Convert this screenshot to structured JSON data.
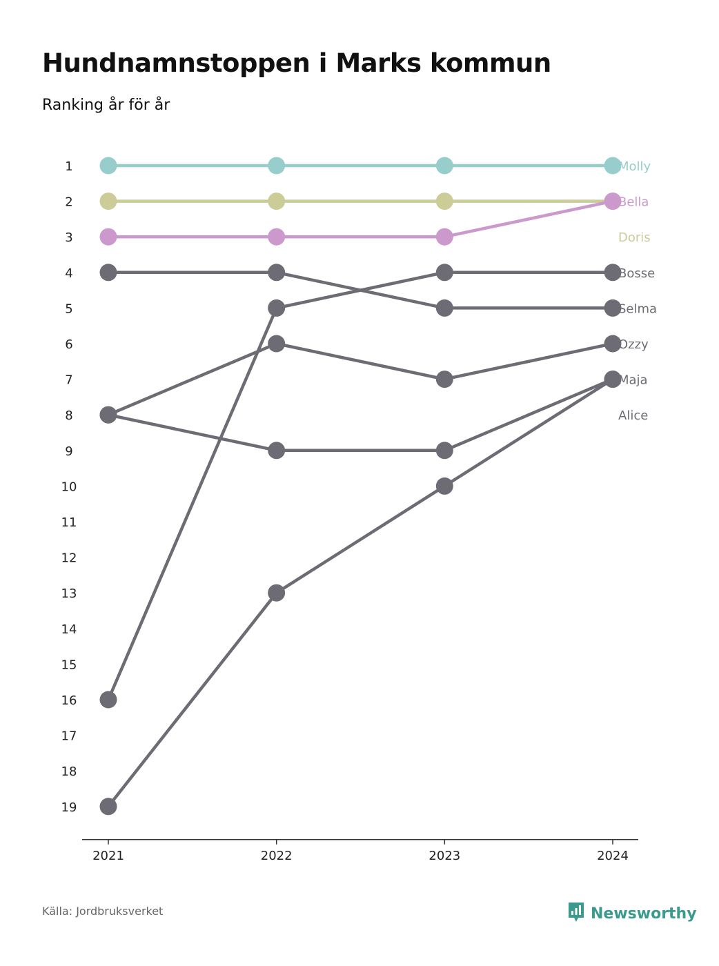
{
  "title": "Hundnamnstoppen i Marks kommun",
  "subtitle": "Ranking år för år",
  "source": "Källa: Jordbruksverket",
  "brand": {
    "name": "Newsworthy",
    "color": "#3a9a8e",
    "icon": "bar-chart-logo-icon"
  },
  "colors": {
    "molly": "#97cdcb",
    "doris": "#cccc99",
    "bella": "#cc99cc",
    "other": "#6d6c74",
    "axis": "#333333"
  },
  "chart_data": {
    "type": "line",
    "subtype": "bump",
    "x": [
      "2021",
      "2022",
      "2023",
      "2024"
    ],
    "y_ticks": [
      1,
      2,
      3,
      4,
      5,
      6,
      7,
      8,
      9,
      10,
      11,
      12,
      13,
      14,
      15,
      16,
      17,
      18,
      19
    ],
    "ylim": [
      1,
      19
    ],
    "y_inverted": true,
    "legend": "direct labels at right",
    "series": [
      {
        "name": "Molly",
        "values": [
          1,
          1,
          1,
          1
        ],
        "color": "#97cdcb"
      },
      {
        "name": "Doris",
        "values": [
          2,
          2,
          2,
          2
        ],
        "color": "#cccc99"
      },
      {
        "name": "Bella",
        "values": [
          3,
          3,
          3,
          2
        ],
        "color": "#cc99cc"
      },
      {
        "name": "Bosse",
        "values": [
          16,
          5,
          4,
          4
        ],
        "color": "#6d6c74"
      },
      {
        "name": "Selma",
        "values": [
          4,
          4,
          5,
          5
        ],
        "color": "#6d6c74"
      },
      {
        "name": "Ozzy",
        "values": [
          8,
          6,
          7,
          6
        ],
        "color": "#6d6c74"
      },
      {
        "name": "Maja",
        "values": [
          8,
          9,
          9,
          7
        ],
        "color": "#6d6c74"
      },
      {
        "name": "Alice",
        "values": [
          19,
          13,
          10,
          7
        ],
        "color": "#6d6c74"
      }
    ],
    "end_labels": [
      {
        "text": "Molly",
        "rank": 1,
        "color": "#97cdcb"
      },
      {
        "text": "Bella",
        "rank": 2,
        "color": "#cc99cc"
      },
      {
        "text": "Doris",
        "rank": 3,
        "color": "#cccc99"
      },
      {
        "text": "Bosse",
        "rank": 4,
        "color": "#6d6c74"
      },
      {
        "text": "Selma",
        "rank": 5,
        "color": "#6d6c74"
      },
      {
        "text": "Ozzy",
        "rank": 6,
        "color": "#6d6c74"
      },
      {
        "text": "Maja",
        "rank": 7,
        "color": "#6d6c74"
      },
      {
        "text": "Alice",
        "rank": 8,
        "color": "#6d6c74"
      }
    ]
  }
}
